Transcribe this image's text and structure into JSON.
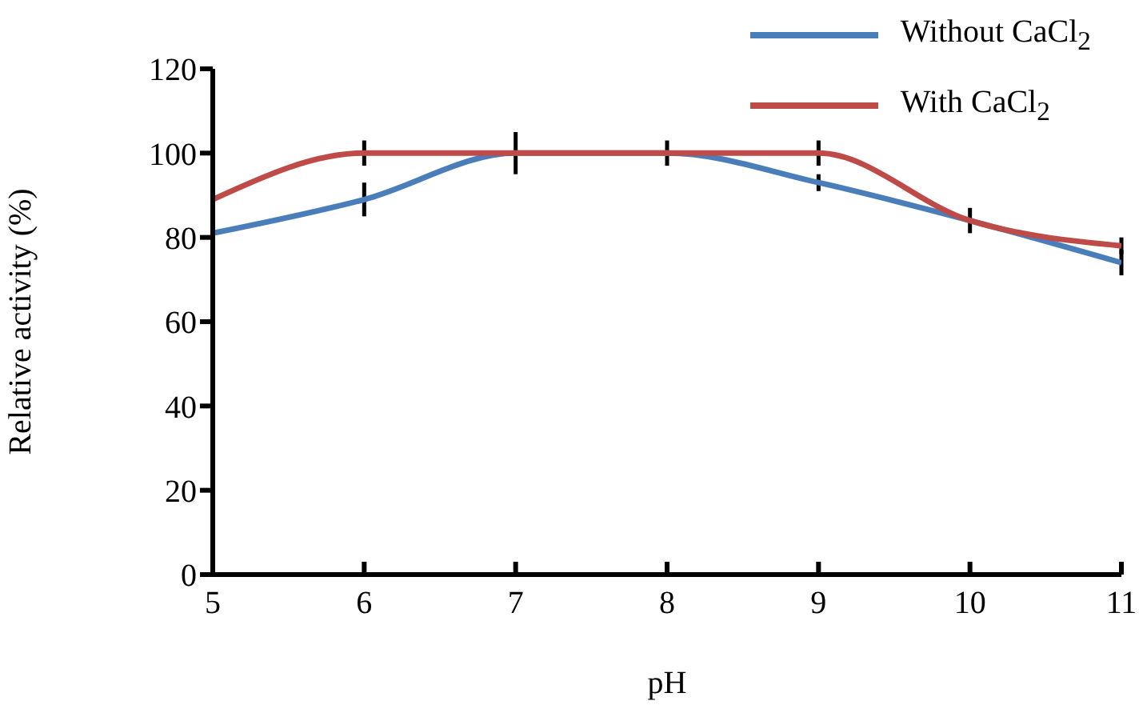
{
  "chart_data": {
    "type": "line",
    "xlabel": "pH",
    "ylabel": "Relative activity (%)",
    "x": [
      5,
      6,
      7,
      8,
      9,
      10,
      11
    ],
    "series": [
      {
        "name": "Without CaCl$_{2}$",
        "color": "#4a7ebb",
        "values": [
          81,
          89,
          100,
          100,
          93,
          84,
          74
        ],
        "errors": [
          2,
          4,
          5,
          3,
          2,
          3,
          3
        ]
      },
      {
        "name": "With CaCl$_{2}$",
        "color": "#be4b48",
        "values": [
          89,
          100,
          100,
          100,
          100,
          84,
          78
        ],
        "errors": [
          2,
          3,
          null,
          null,
          3,
          null,
          2
        ]
      }
    ],
    "xlim": [
      5,
      11
    ],
    "xticks": [
      5,
      6,
      7,
      8,
      9,
      10,
      11
    ],
    "ylim": [
      0,
      120
    ],
    "yticks": [
      0,
      20,
      40,
      60,
      80,
      100,
      120
    ],
    "grid": false,
    "legend": "top right",
    "marker": "none",
    "line_style": "solid"
  }
}
